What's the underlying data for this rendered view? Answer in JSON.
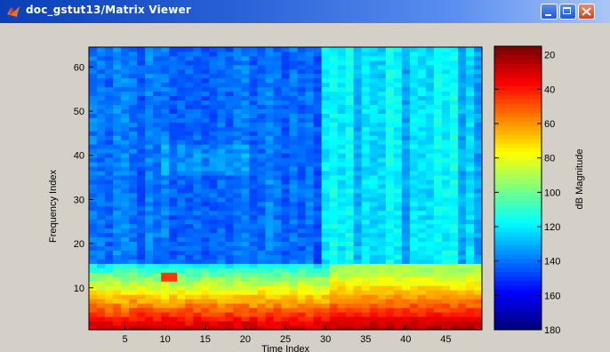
{
  "window": {
    "title": "doc_gstut13/Matrix Viewer",
    "icon": "matlab-icon"
  },
  "chart_data": {
    "type": "heatmap",
    "title": "",
    "xlabel": "Time Index",
    "ylabel": "Frequency Index",
    "colorbar_label": "dB Magnitude",
    "x_range": [
      1,
      49
    ],
    "y_range": [
      1,
      64
    ],
    "x_ticks": [
      5,
      10,
      15,
      20,
      25,
      30,
      35,
      40,
      45
    ],
    "y_ticks": [
      10,
      20,
      30,
      40,
      50,
      60
    ],
    "color_range": [
      180,
      15
    ],
    "colorbar_ticks": [
      20,
      40,
      60,
      80,
      100,
      120,
      140,
      160,
      180
    ],
    "colormap": "jet",
    "colorbar_reversed": true,
    "grid": false,
    "cells": [
      49,
      64
    ]
  }
}
